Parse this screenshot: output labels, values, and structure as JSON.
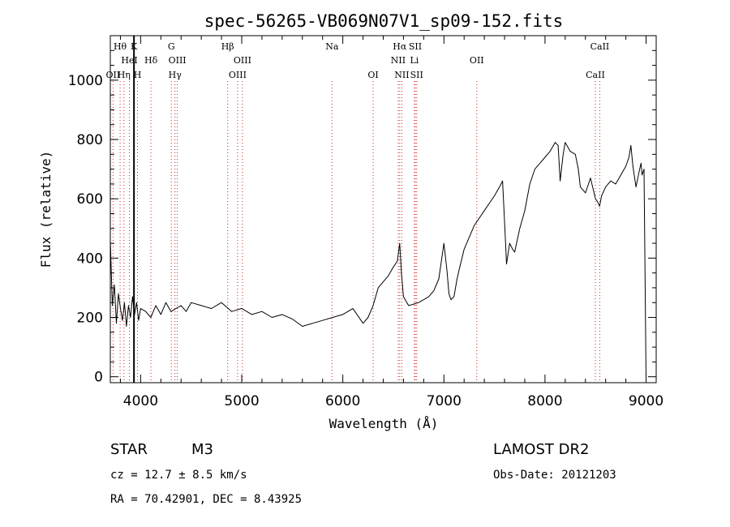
{
  "chart_data": {
    "type": "line",
    "title": "spec-56265-VB069N07V1_sp09-152.fits",
    "xlabel": "Wavelength (Å)",
    "ylabel": "Flux (relative)",
    "xlim": [
      3700,
      9100
    ],
    "ylim": [
      -20,
      1150
    ],
    "x_ticks": [
      4000,
      5000,
      6000,
      7000,
      8000,
      9000
    ],
    "x_tick_labels": [
      "4000",
      "5000",
      "6000",
      "7000",
      "8000",
      "9000"
    ],
    "y_ticks": [
      0,
      200,
      400,
      600,
      800,
      1000
    ],
    "y_tick_labels": [
      "0",
      "200",
      "400",
      "600",
      "800",
      "1000"
    ],
    "grid": false,
    "series": [
      {
        "color": "#000000",
        "x": [
          3700,
          3720,
          3740,
          3760,
          3780,
          3800,
          3820,
          3840,
          3860,
          3880,
          3900,
          3920,
          3940,
          3960,
          3980,
          4000,
          4050,
          4100,
          4150,
          4200,
          4250,
          4300,
          4350,
          4400,
          4450,
          4500,
          4600,
          4700,
          4800,
          4900,
          5000,
          5100,
          5200,
          5300,
          5400,
          5500,
          5600,
          5700,
          5800,
          5900,
          6000,
          6100,
          6200,
          6250,
          6300,
          6350,
          6400,
          6450,
          6500,
          6540,
          6563,
          6580,
          6600,
          6650,
          6700,
          6750,
          6800,
          6850,
          6900,
          6950,
          7000,
          7030,
          7050,
          7070,
          7100,
          7130,
          7150,
          7200,
          7300,
          7400,
          7500,
          7550,
          7580,
          7600,
          7620,
          7650,
          7680,
          7700,
          7750,
          7800,
          7850,
          7900,
          7950,
          8000,
          8050,
          8100,
          8130,
          8150,
          8180,
          8200,
          8250,
          8300,
          8330,
          8350,
          8400,
          8450,
          8500,
          8520,
          8540,
          8560,
          8600,
          8650,
          8700,
          8750,
          8800,
          8830,
          8850,
          8870,
          8900,
          8930,
          8950,
          8960,
          8980,
          9000
        ],
        "y": [
          460,
          240,
          310,
          180,
          280,
          230,
          190,
          250,
          170,
          240,
          200,
          270,
          210,
          250,
          190,
          230,
          220,
          200,
          240,
          210,
          250,
          220,
          230,
          240,
          220,
          250,
          240,
          230,
          250,
          220,
          230,
          210,
          220,
          200,
          210,
          195,
          170,
          180,
          190,
          200,
          210,
          230,
          180,
          200,
          240,
          300,
          320,
          340,
          370,
          390,
          450,
          350,
          270,
          240,
          245,
          250,
          260,
          270,
          290,
          330,
          450,
          360,
          280,
          260,
          270,
          330,
          360,
          430,
          510,
          560,
          610,
          640,
          660,
          520,
          380,
          450,
          430,
          420,
          500,
          560,
          650,
          700,
          720,
          740,
          760,
          790,
          780,
          660,
          750,
          790,
          760,
          750,
          700,
          640,
          620,
          670,
          600,
          590,
          575,
          610,
          640,
          660,
          650,
          680,
          710,
          740,
          780,
          710,
          640,
          690,
          720,
          680,
          700,
          0
        ]
      }
    ],
    "spectral_lines": [
      {
        "label": "Hθ",
        "x": 3797,
        "row": 1
      },
      {
        "label": "K",
        "x": 3934,
        "row": 1
      },
      {
        "label": "HeI",
        "x": 3889,
        "row": 2
      },
      {
        "label": "Hδ",
        "x": 4102,
        "row": 2
      },
      {
        "label": "OII",
        "x": 3727,
        "row": 3
      },
      {
        "label": "Hη",
        "x": 3835,
        "row": 3
      },
      {
        "label": "H",
        "x": 3969,
        "row": 3
      },
      {
        "label": "G",
        "x": 4304,
        "row": 1
      },
      {
        "label": "OIII",
        "x": 4363,
        "row": 2
      },
      {
        "label": "Hγ",
        "x": 4340,
        "row": 3
      },
      {
        "label": "Hβ",
        "x": 4861,
        "row": 1
      },
      {
        "label": "OIII",
        "x": 5007,
        "row": 2
      },
      {
        "label": "OIII",
        "x": 4959,
        "row": 3
      },
      {
        "label": "Na",
        "x": 5893,
        "row": 1
      },
      {
        "label": "OI",
        "x": 6300,
        "row": 3
      },
      {
        "label": "Hα",
        "x": 6563,
        "row": 1
      },
      {
        "label": "SII",
        "x": 6717,
        "row": 1
      },
      {
        "label": "NII",
        "x": 6548,
        "row": 2
      },
      {
        "label": "Li",
        "x": 6708,
        "row": 2
      },
      {
        "label": "NII",
        "x": 6584,
        "row": 3
      },
      {
        "label": "SII",
        "x": 6731,
        "row": 3
      },
      {
        "label": "OII",
        "x": 7325,
        "row": 2
      },
      {
        "label": "CaII",
        "x": 8542,
        "row": 1
      },
      {
        "label": "CaII",
        "x": 8498,
        "row": 3
      }
    ],
    "marker_line_x": 3934
  },
  "info": {
    "object_type": "STAR",
    "subclass": "M3",
    "survey": "LAMOST DR2",
    "cz": "cz = 12.7 ± 8.5 km/s",
    "obs_date": "Obs-Date: 20121203",
    "radec": "RA =  70.42901, DEC =   8.43925"
  }
}
